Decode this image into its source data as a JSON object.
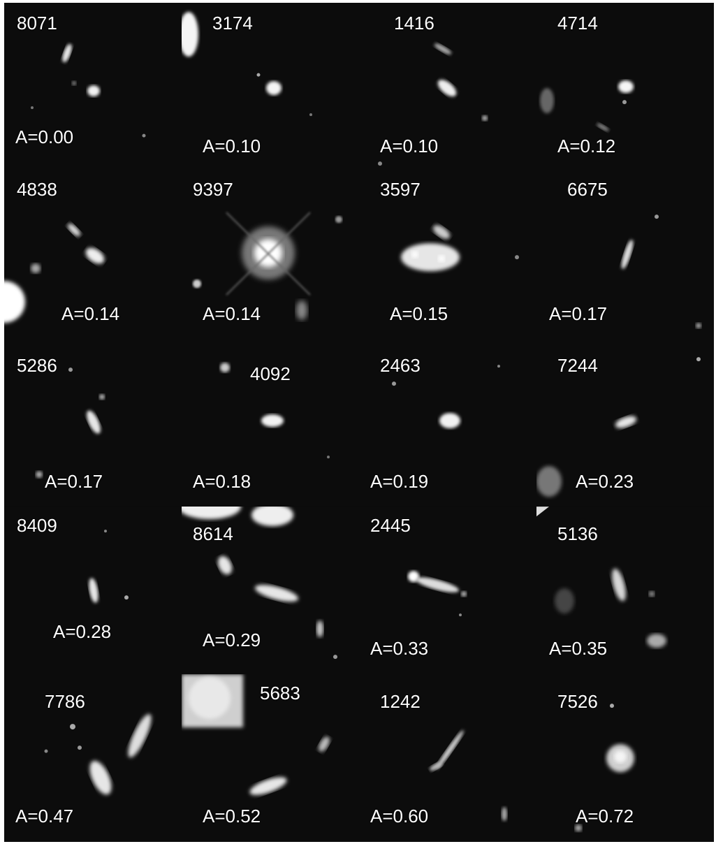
{
  "panels": [
    {
      "id": "8071",
      "asymmetry": "A=0.00"
    },
    {
      "id": "3174",
      "asymmetry": "A=0.10"
    },
    {
      "id": "1416",
      "asymmetry": "A=0.10"
    },
    {
      "id": "4714",
      "asymmetry": "A=0.12"
    },
    {
      "id": "4838",
      "asymmetry": "A=0.14"
    },
    {
      "id": "9397",
      "asymmetry": "A=0.14"
    },
    {
      "id": "3597",
      "asymmetry": "A=0.15"
    },
    {
      "id": "6675",
      "asymmetry": "A=0.17"
    },
    {
      "id": "5286",
      "asymmetry": "A=0.17"
    },
    {
      "id": "4092",
      "asymmetry": "A=0.18"
    },
    {
      "id": "2463",
      "asymmetry": "A=0.19"
    },
    {
      "id": "7244",
      "asymmetry": "A=0.23"
    },
    {
      "id": "8409",
      "asymmetry": "A=0.28"
    },
    {
      "id": "8614",
      "asymmetry": "A=0.29"
    },
    {
      "id": "2445",
      "asymmetry": "A=0.33"
    },
    {
      "id": "5136",
      "asymmetry": "A=0.35"
    },
    {
      "id": "7786",
      "asymmetry": "A=0.47"
    },
    {
      "id": "5683",
      "asymmetry": "A=0.52"
    },
    {
      "id": "1242",
      "asymmetry": "A=0.60"
    },
    {
      "id": "7526",
      "asymmetry": "A=0.72"
    }
  ]
}
